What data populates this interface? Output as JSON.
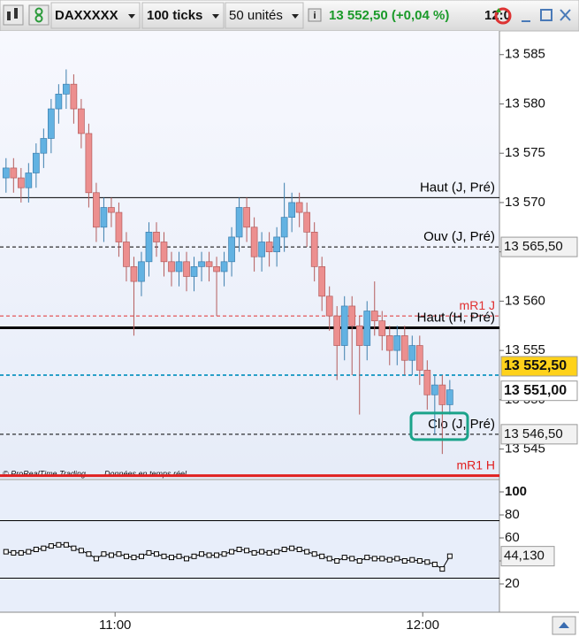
{
  "toolbar": {
    "symbol": "DAXXXXX",
    "interval": "100 ticks",
    "units": "50 unités",
    "quote": "13 552,50 (+0,04 %)",
    "time": "12:0"
  },
  "chart_data": [
    {
      "type": "candlestick",
      "source": "© ProRealTime Trading",
      "status": "Données en temps réel",
      "open": [
        13572.5,
        13573.5,
        13572.5,
        13571.5,
        13573,
        13575,
        13576.5,
        13579.5,
        13581,
        13582,
        13579.5,
        13577,
        13571,
        13567.5,
        13569.5,
        13569,
        13566,
        13563.5,
        13562,
        13564,
        13567,
        13566,
        13564,
        13563,
        13564,
        13562.5,
        13563.5,
        13564,
        13563.5,
        13563,
        13564,
        13566.5,
        13569.5,
        13567.5,
        13564.5,
        13566,
        13565,
        13566.5,
        13568.5,
        13570,
        13569,
        13567,
        13563.5,
        13560.5,
        13558.5,
        13555.5,
        13559.5,
        13557.5,
        13555.5,
        13559,
        13558,
        13556.5,
        13555,
        13556.5,
        13554,
        13555.5,
        13553,
        13550.5,
        13551.5,
        13549.5
      ],
      "high": [
        13574.5,
        13574.5,
        13573.5,
        13574,
        13576,
        13577.5,
        13580.5,
        13582,
        13583.5,
        13583,
        13580.5,
        13578,
        13572,
        13570.5,
        13570.5,
        13570,
        13567,
        13564.5,
        13565,
        13568,
        13568,
        13567,
        13565,
        13565,
        13565,
        13564.5,
        13565,
        13565,
        13564.5,
        13565,
        13567.5,
        13570.5,
        13570.5,
        13568.5,
        13567,
        13567,
        13567.5,
        13572,
        13571,
        13571,
        13570,
        13568,
        13564.5,
        13561.5,
        13559.5,
        13560.5,
        13560.5,
        13558.5,
        13560,
        13562,
        13559,
        13557.5,
        13557.5,
        13557.5,
        13556.5,
        13556.5,
        13554,
        13552.5,
        13552.5,
        13552
      ],
      "low": [
        13571,
        13571,
        13570,
        13570,
        13571.5,
        13573.5,
        13575,
        13578,
        13579.5,
        13578,
        13575.5,
        13569.5,
        13566,
        13566,
        13567.5,
        13564.5,
        13562,
        13556.5,
        13560.5,
        13562.5,
        13564.5,
        13562.5,
        13561.5,
        13561.5,
        13561,
        13561,
        13562,
        13562,
        13558.5,
        13561.5,
        13562.5,
        13565,
        13566,
        13563,
        13563,
        13563.5,
        13563.5,
        13565,
        13567,
        13567.5,
        13565.5,
        13562,
        13559,
        13557,
        13552,
        13554,
        13552.5,
        13548.5,
        13554,
        13556.5,
        13555,
        13553.5,
        13553.5,
        13552.5,
        13552.5,
        13551.5,
        13549,
        13546.5,
        13544.5,
        13548.5
      ],
      "close": [
        13573.5,
        13572.5,
        13571.5,
        13573,
        13575,
        13576.5,
        13579.5,
        13581,
        13582,
        13579.5,
        13577,
        13571,
        13567.5,
        13569.5,
        13569,
        13566,
        13563.5,
        13562,
        13564,
        13567,
        13566,
        13564,
        13563,
        13564,
        13562.5,
        13563.5,
        13564,
        13563.5,
        13563,
        13564,
        13566.5,
        13569.5,
        13567.5,
        13564.5,
        13566,
        13565,
        13566.5,
        13568.5,
        13570,
        13569,
        13567,
        13563.5,
        13560.5,
        13558.5,
        13555.5,
        13559.5,
        13557.5,
        13555.5,
        13559,
        13558,
        13556.5,
        13555,
        13556.5,
        13554,
        13555.5,
        13553,
        13550.5,
        13551.5,
        13549.5,
        13551
      ],
      "up_color": "#62b2e2",
      "down_color": "#ec8f8f",
      "xlim": [
        -0.8,
        65.6
      ],
      "xticks": [
        {
          "value": 14.5,
          "label": "11:00"
        },
        {
          "value": 55.4,
          "label": "12:00"
        }
      ],
      "ylim": [
        13542,
        13587.4
      ],
      "yticks": [
        {
          "value": 13545,
          "label": "13 545"
        },
        {
          "value": 13550,
          "label": "13 550"
        },
        {
          "value": 13555,
          "label": "13 555"
        },
        {
          "value": 13560,
          "label": "13 560"
        },
        {
          "value": 13565,
          "label": "13 565"
        },
        {
          "value": 13570,
          "label": "13 570"
        },
        {
          "value": 13575,
          "label": "13 575"
        },
        {
          "value": 13580,
          "label": "13 580"
        },
        {
          "value": 13585,
          "label": "13 585"
        }
      ],
      "levels": [
        {
          "label": "Haut (J, Pré)",
          "value": 13570.5,
          "color": "#000000",
          "dashed": false,
          "width": 1
        },
        {
          "label": "Ouv (J, Pré)",
          "value": 13565.5,
          "color": "#000000",
          "dashed": true,
          "width": 1,
          "tag": "13 565,50"
        },
        {
          "label": "mR1 J",
          "value": 13558.5,
          "color": "#e03030",
          "dashed": true,
          "width": 1
        },
        {
          "label": "Haut (H, Pré)",
          "value": 13557.3,
          "color": "#000000",
          "dashed": false,
          "width": 3
        },
        {
          "value": 13552.5,
          "color": "#2aa0c8",
          "dashed": true,
          "width": 2,
          "tag": "13 552,50"
        },
        {
          "label": "Clo (J, Pré)",
          "value": 13546.5,
          "color": "#000000",
          "dashed": true,
          "width": 1,
          "tag": "13 546,50"
        },
        {
          "label": "mR1 H",
          "value": 13542.3,
          "color": "#e02020",
          "dashed": false,
          "width": 3
        }
      ],
      "last_tag": {
        "value": 13551,
        "label": "13 551,00"
      }
    },
    {
      "type": "line",
      "values": [
        48,
        47,
        47,
        48,
        50,
        51,
        53,
        54,
        54,
        51,
        49,
        46,
        42,
        46,
        45,
        46,
        44,
        43,
        44,
        47,
        46,
        44,
        43,
        44,
        42,
        44,
        46,
        45,
        45,
        46,
        48,
        50,
        49,
        47,
        48,
        47,
        48,
        50,
        51,
        50,
        48,
        46,
        44,
        42,
        40,
        43,
        42,
        40,
        43,
        42,
        42,
        41,
        42,
        40,
        41,
        40,
        39,
        37,
        33,
        44.13
      ],
      "color": "#000000",
      "ylim": [
        -4.6,
        110
      ],
      "yticks": [
        20,
        40,
        60,
        80,
        100
      ],
      "levels": [
        75,
        25
      ],
      "tag": {
        "value": 44.13,
        "label": "44,130"
      }
    }
  ]
}
